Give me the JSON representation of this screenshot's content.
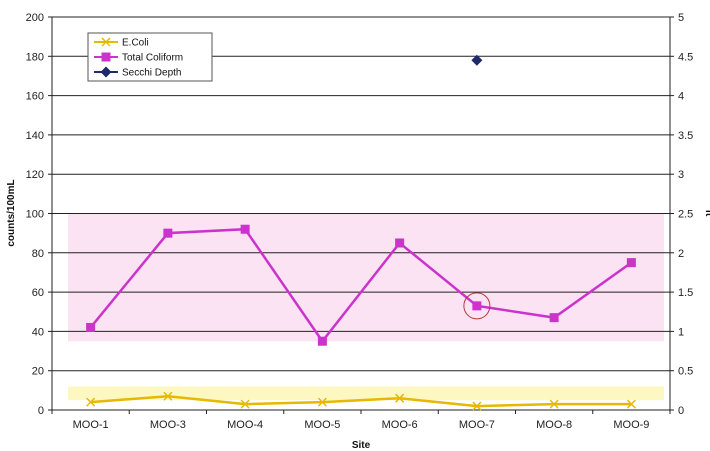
{
  "chart_data": {
    "type": "line",
    "xlabel": "Site",
    "ylabel": "counts/100mL",
    "y2label": "ft",
    "categories": [
      "MOO-1",
      "MOO-3",
      "MOO-4",
      "MOO-5",
      "MOO-6",
      "MOO-7",
      "MOO-8",
      "MOO-9"
    ],
    "y_tick_labels": [
      "0",
      "20",
      "40",
      "60",
      "80",
      "100",
      "120",
      "140",
      "160",
      "180",
      "200"
    ],
    "y2_tick_labels": [
      "0",
      "0.5",
      "1",
      "1.5",
      "2",
      "2.5",
      "3",
      "3.5",
      "4",
      "4.5",
      "5"
    ],
    "ylim": [
      0,
      200
    ],
    "y2lim": [
      0,
      5
    ],
    "grid": true,
    "legend_position": "top-left",
    "series": [
      {
        "name": "E.Coli",
        "axis": "left",
        "color": "#e6b800",
        "marker": "x",
        "values": [
          4,
          7,
          3,
          4,
          6,
          2,
          3,
          3
        ]
      },
      {
        "name": "Total Coliform",
        "axis": "left",
        "color": "#cc33cc",
        "marker": "square",
        "values": [
          42,
          90,
          92,
          35,
          85,
          53,
          47,
          75
        ]
      },
      {
        "name": "Secchi Depth",
        "axis": "right",
        "color": "#1f2a6b",
        "marker": "diamond",
        "values": [
          null,
          null,
          null,
          null,
          null,
          4.45,
          null,
          null
        ]
      }
    ],
    "bands": [
      {
        "axis": "left",
        "from": 35,
        "to": 100,
        "color": "#fbe3f3"
      },
      {
        "axis": "left",
        "from": 5,
        "to": 12,
        "color": "#fdf7c2"
      }
    ],
    "highlighted_point": {
      "series": "Total Coliform",
      "category": "MOO-7"
    }
  }
}
